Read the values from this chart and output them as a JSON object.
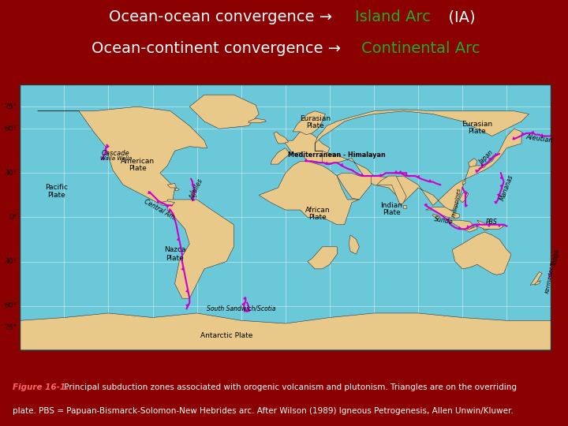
{
  "bg_color": "#8B0000",
  "white_color": "#FFFFFF",
  "green_color": "#22AA22",
  "red_label_color": "#FF6666",
  "map_ocean_color": "#6BC8D8",
  "map_land_color": "#E8C98A",
  "map_border_color": "#333333",
  "subduction_color": "#CC00CC",
  "subduction_triangle_color": "#CC00CC",
  "header_fontsize": 14,
  "footer_fontsize": 7.5,
  "figure_width": 7.2,
  "figure_height": 5.4,
  "header_line1_white": "Ocean-ocean convergence → ",
  "header_line1_green": "Island Arc",
  "header_line1_white2": "  (IA)",
  "header_line2_white": "Ocean-continent convergence → ",
  "header_line2_green": "Continental Arc",
  "footer_label": "Figure 16-1.",
  "footer_body1": " Principal subduction zones associated with orogenic volcanism and plutonism. Triangles are on the overriding",
  "footer_body2": "plate. PBS = Papuan-Bismarck-Solomon-New Hebrides arc. After Wilson (1989) Igneous Petrogenesis, Allen Unwin/Kluwer."
}
